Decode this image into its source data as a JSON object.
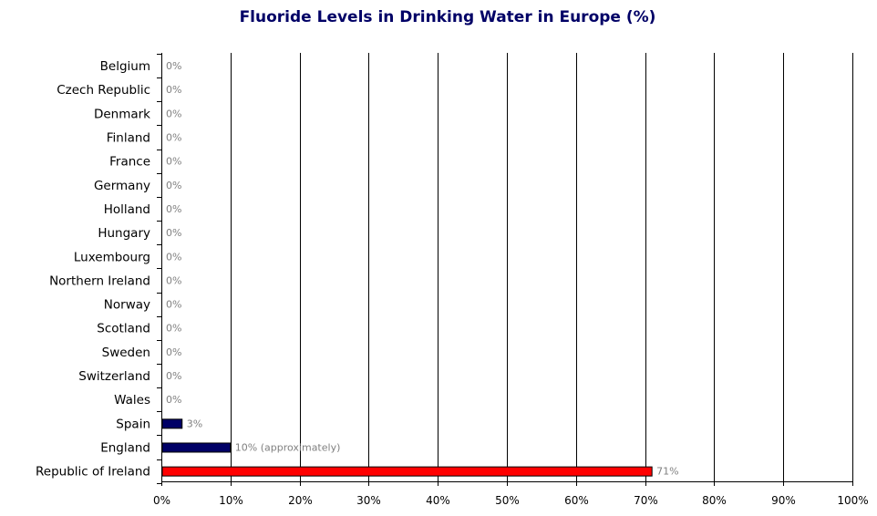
{
  "chart_data": {
    "type": "bar",
    "orientation": "horizontal",
    "title": "Fluoride Levels in Drinking Water in Europe (%)",
    "xlabel": "",
    "ylabel": "",
    "xlim": [
      0,
      100
    ],
    "grid": true,
    "categories": [
      "Belgium",
      "Czech Republic",
      "Denmark",
      "Finland",
      "France",
      "Germany",
      "Holland",
      "Hungary",
      "Luxembourg",
      "Northern Ireland",
      "Norway",
      "Scotland",
      "Sweden",
      "Switzerland",
      "Wales",
      "Spain",
      "England",
      "Republic of Ireland"
    ],
    "values": [
      0,
      0,
      0,
      0,
      0,
      0,
      0,
      0,
      0,
      0,
      0,
      0,
      0,
      0,
      0,
      3,
      10,
      71
    ],
    "data_labels": [
      "0%",
      "0%",
      "0%",
      "0%",
      "0%",
      "0%",
      "0%",
      "0%",
      "0%",
      "0%",
      "0%",
      "0%",
      "0%",
      "0%",
      "0%",
      "3%",
      "10% (approximately)",
      "71%"
    ],
    "bar_colors": [
      "#000066",
      "#000066",
      "#000066",
      "#000066",
      "#000066",
      "#000066",
      "#000066",
      "#000066",
      "#000066",
      "#000066",
      "#000066",
      "#000066",
      "#000066",
      "#000066",
      "#000066",
      "#000066",
      "#000066",
      "#ff0000"
    ],
    "x_ticks": [
      "0%",
      "10%",
      "20%",
      "30%",
      "40%",
      "50%",
      "60%",
      "70%",
      "80%",
      "90%",
      "100%"
    ],
    "x_tick_values": [
      0,
      10,
      20,
      30,
      40,
      50,
      60,
      70,
      80,
      90,
      100
    ]
  }
}
